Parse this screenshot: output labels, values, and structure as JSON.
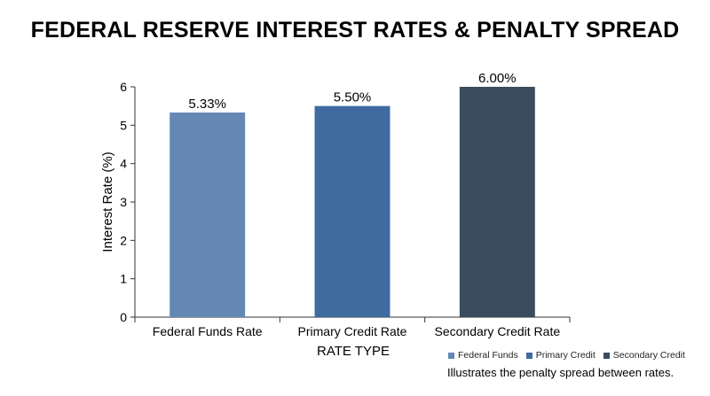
{
  "chart_data": {
    "type": "bar",
    "title": "FEDERAL RESERVE INTEREST RATES & PENALTY SPREAD",
    "xlabel": "RATE TYPE",
    "ylabel": "Interest Rate (%)",
    "categories": [
      "Federal Funds Rate",
      "Primary Credit Rate",
      "Secondary Credit Rate"
    ],
    "values": [
      5.33,
      5.5,
      6.0
    ],
    "data_labels": [
      "5.33%",
      "5.50%",
      "6.00%"
    ],
    "colors": [
      "#6488b3",
      "#3f6ba0",
      "#3b4c5e"
    ],
    "ylim": [
      0,
      6
    ],
    "yticks": [
      0,
      1,
      2,
      3,
      4,
      5,
      6
    ],
    "grid": false,
    "legend_position": "bottom-right",
    "legend": [
      {
        "label": "Federal Funds",
        "color": "#6488b3"
      },
      {
        "label": "Primary Credit",
        "color": "#3f6ba0"
      },
      {
        "label": "Secondary Credit",
        "color": "#3b4c5e"
      }
    ],
    "annotation": "Illustrates the penalty spread between rates."
  }
}
